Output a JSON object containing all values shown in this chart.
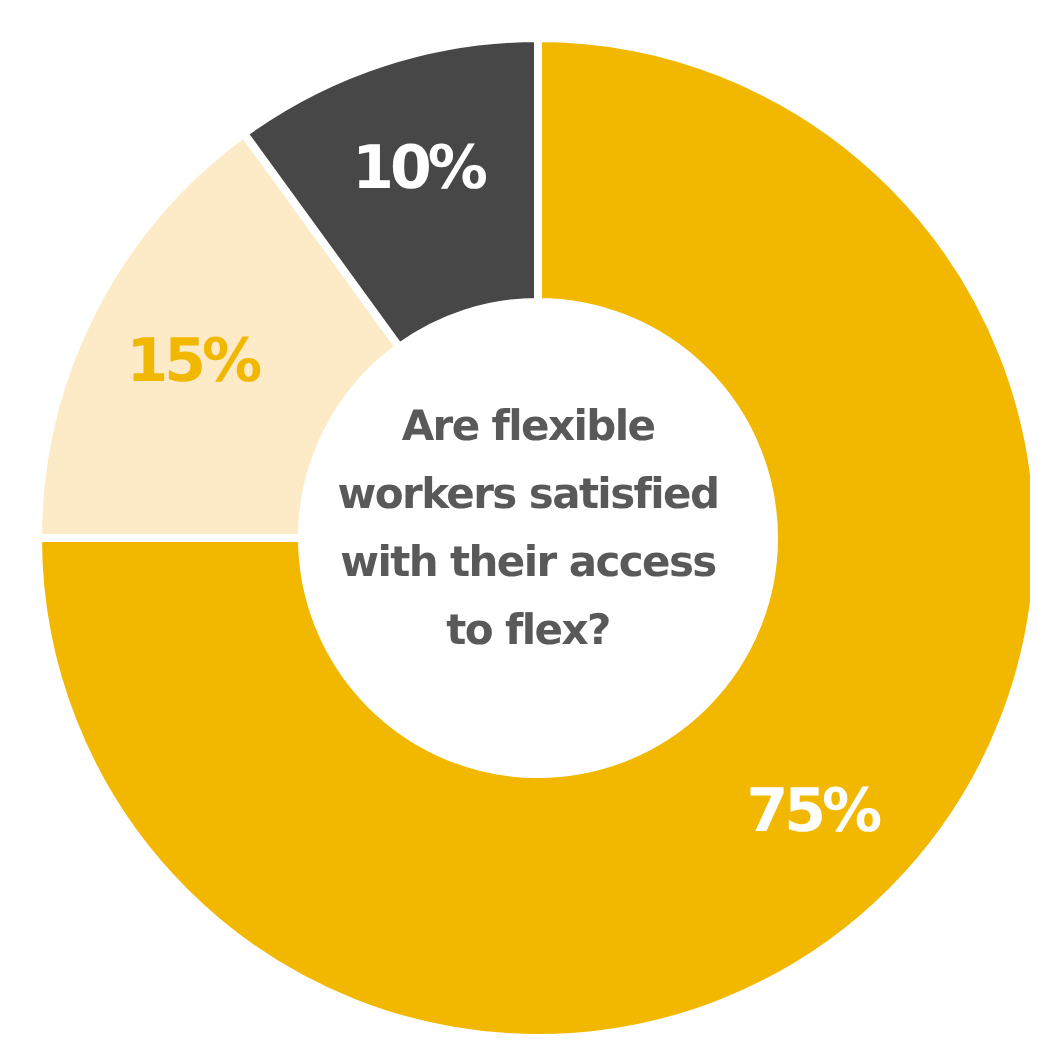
{
  "chart_data": {
    "type": "donut",
    "title": "Are flexible workers satisfied with their access to flex?",
    "categories": [
      null,
      null,
      null
    ],
    "values": [
      75,
      15,
      10
    ],
    "colors": [
      "#f2b800",
      "#fdebc8",
      "#474747"
    ],
    "value_labels": [
      "75%",
      "15%",
      "10%"
    ]
  }
}
